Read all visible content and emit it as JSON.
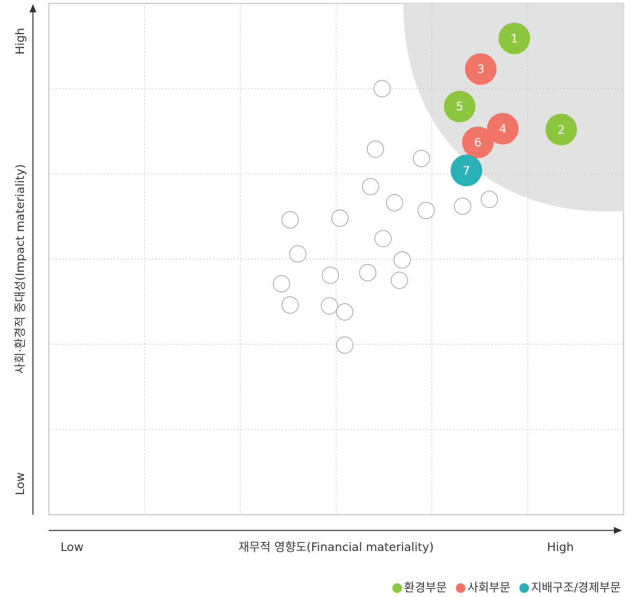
{
  "chart_data": {
    "type": "scatter",
    "x_axis": {
      "label": "재무적 영향도(Financial materiality)",
      "low": "Low",
      "high": "High"
    },
    "y_axis": {
      "label": "사회·환경적 중대성(Impact materiality)",
      "low": "Low",
      "high": "High"
    },
    "xlim": [
      0,
      6
    ],
    "ylim": [
      0,
      6
    ],
    "xticks": [
      1,
      2,
      3,
      4,
      5
    ],
    "yticks": [
      1,
      2,
      3,
      4,
      5
    ],
    "grid": true,
    "series": [
      {
        "name": "환경부문",
        "color": "#8cc63f",
        "labels": [
          "1",
          "5",
          "2"
        ],
        "x": [
          4.86,
          4.29,
          5.35
        ],
        "values": [
          5.59,
          4.79,
          4.52
        ]
      },
      {
        "name": "사회부문",
        "color": "#f07468",
        "labels": [
          "3",
          "4",
          "6"
        ],
        "x": [
          4.51,
          4.74,
          4.48
        ],
        "values": [
          5.23,
          4.53,
          4.37
        ]
      },
      {
        "name": "지배구조/경제부문",
        "color": "#2ab1b5",
        "labels": [
          "7"
        ],
        "x": [
          4.36
        ],
        "values": [
          4.04
        ]
      },
      {
        "color": "#ffffff",
        "x": [
          3.48,
          3.41,
          3.89,
          3.36,
          3.61,
          3.94,
          4.32,
          4.6,
          2.52,
          3.04,
          3.49,
          2.6,
          3.69,
          3.33,
          2.94,
          3.66,
          2.43,
          2.52,
          2.93,
          3.09,
          3.09
        ],
        "values": [
          5.0,
          4.29,
          4.18,
          3.85,
          3.66,
          3.57,
          3.62,
          3.7,
          3.46,
          3.48,
          3.24,
          3.06,
          2.99,
          2.84,
          2.81,
          2.75,
          2.71,
          2.46,
          2.45,
          2.38,
          1.99
        ]
      }
    ]
  }
}
